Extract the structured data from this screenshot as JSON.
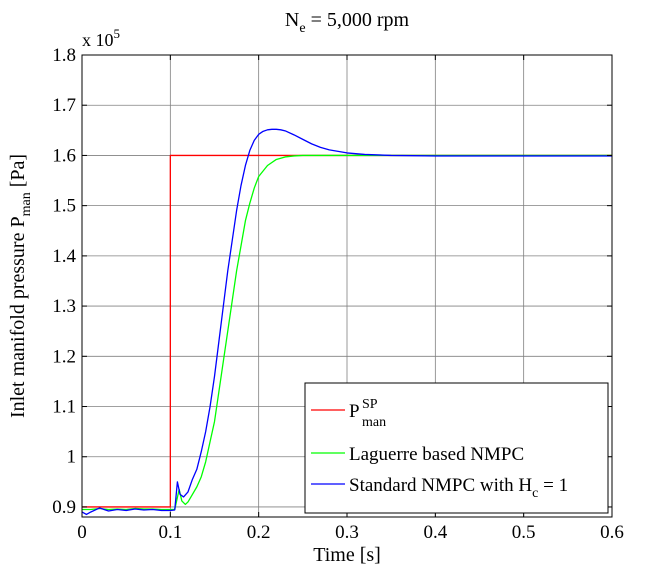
{
  "chart_data": {
    "type": "line",
    "title": {
      "base": "N",
      "sub": "e",
      "rest": " = 5,000 rpm"
    },
    "xlabel": "Time [s]",
    "ylabel": {
      "base": "Inlet manifold pressure P",
      "sub": "man",
      "rest": " [Pa]"
    },
    "y_multiplier": {
      "base": "x 10",
      "sup": "5"
    },
    "xlim": [
      0,
      0.6
    ],
    "ylim": [
      0.88,
      1.8
    ],
    "xticks": [
      0,
      0.1,
      0.2,
      0.3,
      0.4,
      0.5,
      0.6
    ],
    "xtick_labels": [
      "0",
      "0.1",
      "0.2",
      "0.3",
      "0.4",
      "0.5",
      "0.6"
    ],
    "yticks": [
      0.9,
      1.0,
      1.1,
      1.2,
      1.3,
      1.4,
      1.5,
      1.6,
      1.7,
      1.8
    ],
    "ytick_labels": [
      "0.9",
      "1",
      "1.1",
      "1.2",
      "1.3",
      "1.4",
      "1.5",
      "1.6",
      "1.7",
      "1.8"
    ],
    "grid": true,
    "legend_position": "bottom-right",
    "series": [
      {
        "name": {
          "base": "P",
          "sub": "man",
          "sup": "SP",
          "rest": ""
        },
        "color": "#ff0000",
        "x": [
          0,
          0.1,
          0.1,
          0.6
        ],
        "y": [
          0.9,
          0.9,
          1.6,
          1.6
        ]
      },
      {
        "name": {
          "base": "Laguerre based NMPC",
          "sub": "",
          "sup": "",
          "rest": ""
        },
        "color": "#00ff00",
        "x": [
          0,
          0.01,
          0.02,
          0.03,
          0.04,
          0.05,
          0.06,
          0.07,
          0.08,
          0.09,
          0.1,
          0.105,
          0.11,
          0.113,
          0.117,
          0.12,
          0.125,
          0.13,
          0.135,
          0.14,
          0.145,
          0.15,
          0.155,
          0.16,
          0.165,
          0.17,
          0.175,
          0.18,
          0.185,
          0.19,
          0.195,
          0.2,
          0.21,
          0.22,
          0.23,
          0.24,
          0.25,
          0.27,
          0.3,
          0.35,
          0.4,
          0.5,
          0.6
        ],
        "y": [
          0.895,
          0.895,
          0.897,
          0.895,
          0.896,
          0.895,
          0.897,
          0.896,
          0.896,
          0.895,
          0.895,
          0.895,
          0.935,
          0.912,
          0.905,
          0.91,
          0.925,
          0.94,
          0.96,
          0.99,
          1.03,
          1.07,
          1.13,
          1.19,
          1.25,
          1.31,
          1.37,
          1.42,
          1.47,
          1.505,
          1.535,
          1.558,
          1.58,
          1.592,
          1.597,
          1.599,
          1.6,
          1.6,
          1.6,
          1.6,
          1.6,
          1.6,
          1.6
        ]
      },
      {
        "name": {
          "base": "Standard NMPC with H",
          "sub": "c",
          "sup": "",
          "rest": " = 1"
        },
        "color": "#0000ff",
        "x": [
          0,
          0.005,
          0.01,
          0.02,
          0.03,
          0.04,
          0.05,
          0.06,
          0.07,
          0.08,
          0.09,
          0.1,
          0.105,
          0.108,
          0.111,
          0.115,
          0.12,
          0.125,
          0.13,
          0.135,
          0.14,
          0.145,
          0.15,
          0.155,
          0.16,
          0.165,
          0.17,
          0.175,
          0.18,
          0.185,
          0.19,
          0.195,
          0.2,
          0.205,
          0.21,
          0.215,
          0.22,
          0.225,
          0.23,
          0.24,
          0.25,
          0.26,
          0.27,
          0.28,
          0.3,
          0.32,
          0.35,
          0.4,
          0.45,
          0.5,
          0.6
        ],
        "y": [
          0.89,
          0.885,
          0.89,
          0.898,
          0.892,
          0.895,
          0.893,
          0.896,
          0.894,
          0.895,
          0.893,
          0.893,
          0.894,
          0.95,
          0.925,
          0.92,
          0.93,
          0.955,
          0.975,
          1.01,
          1.05,
          1.1,
          1.16,
          1.23,
          1.3,
          1.37,
          1.43,
          1.49,
          1.54,
          1.58,
          1.61,
          1.63,
          1.642,
          1.648,
          1.651,
          1.652,
          1.652,
          1.651,
          1.649,
          1.641,
          1.632,
          1.623,
          1.616,
          1.611,
          1.605,
          1.602,
          1.6,
          1.599,
          1.599,
          1.599,
          1.599
        ]
      }
    ]
  }
}
